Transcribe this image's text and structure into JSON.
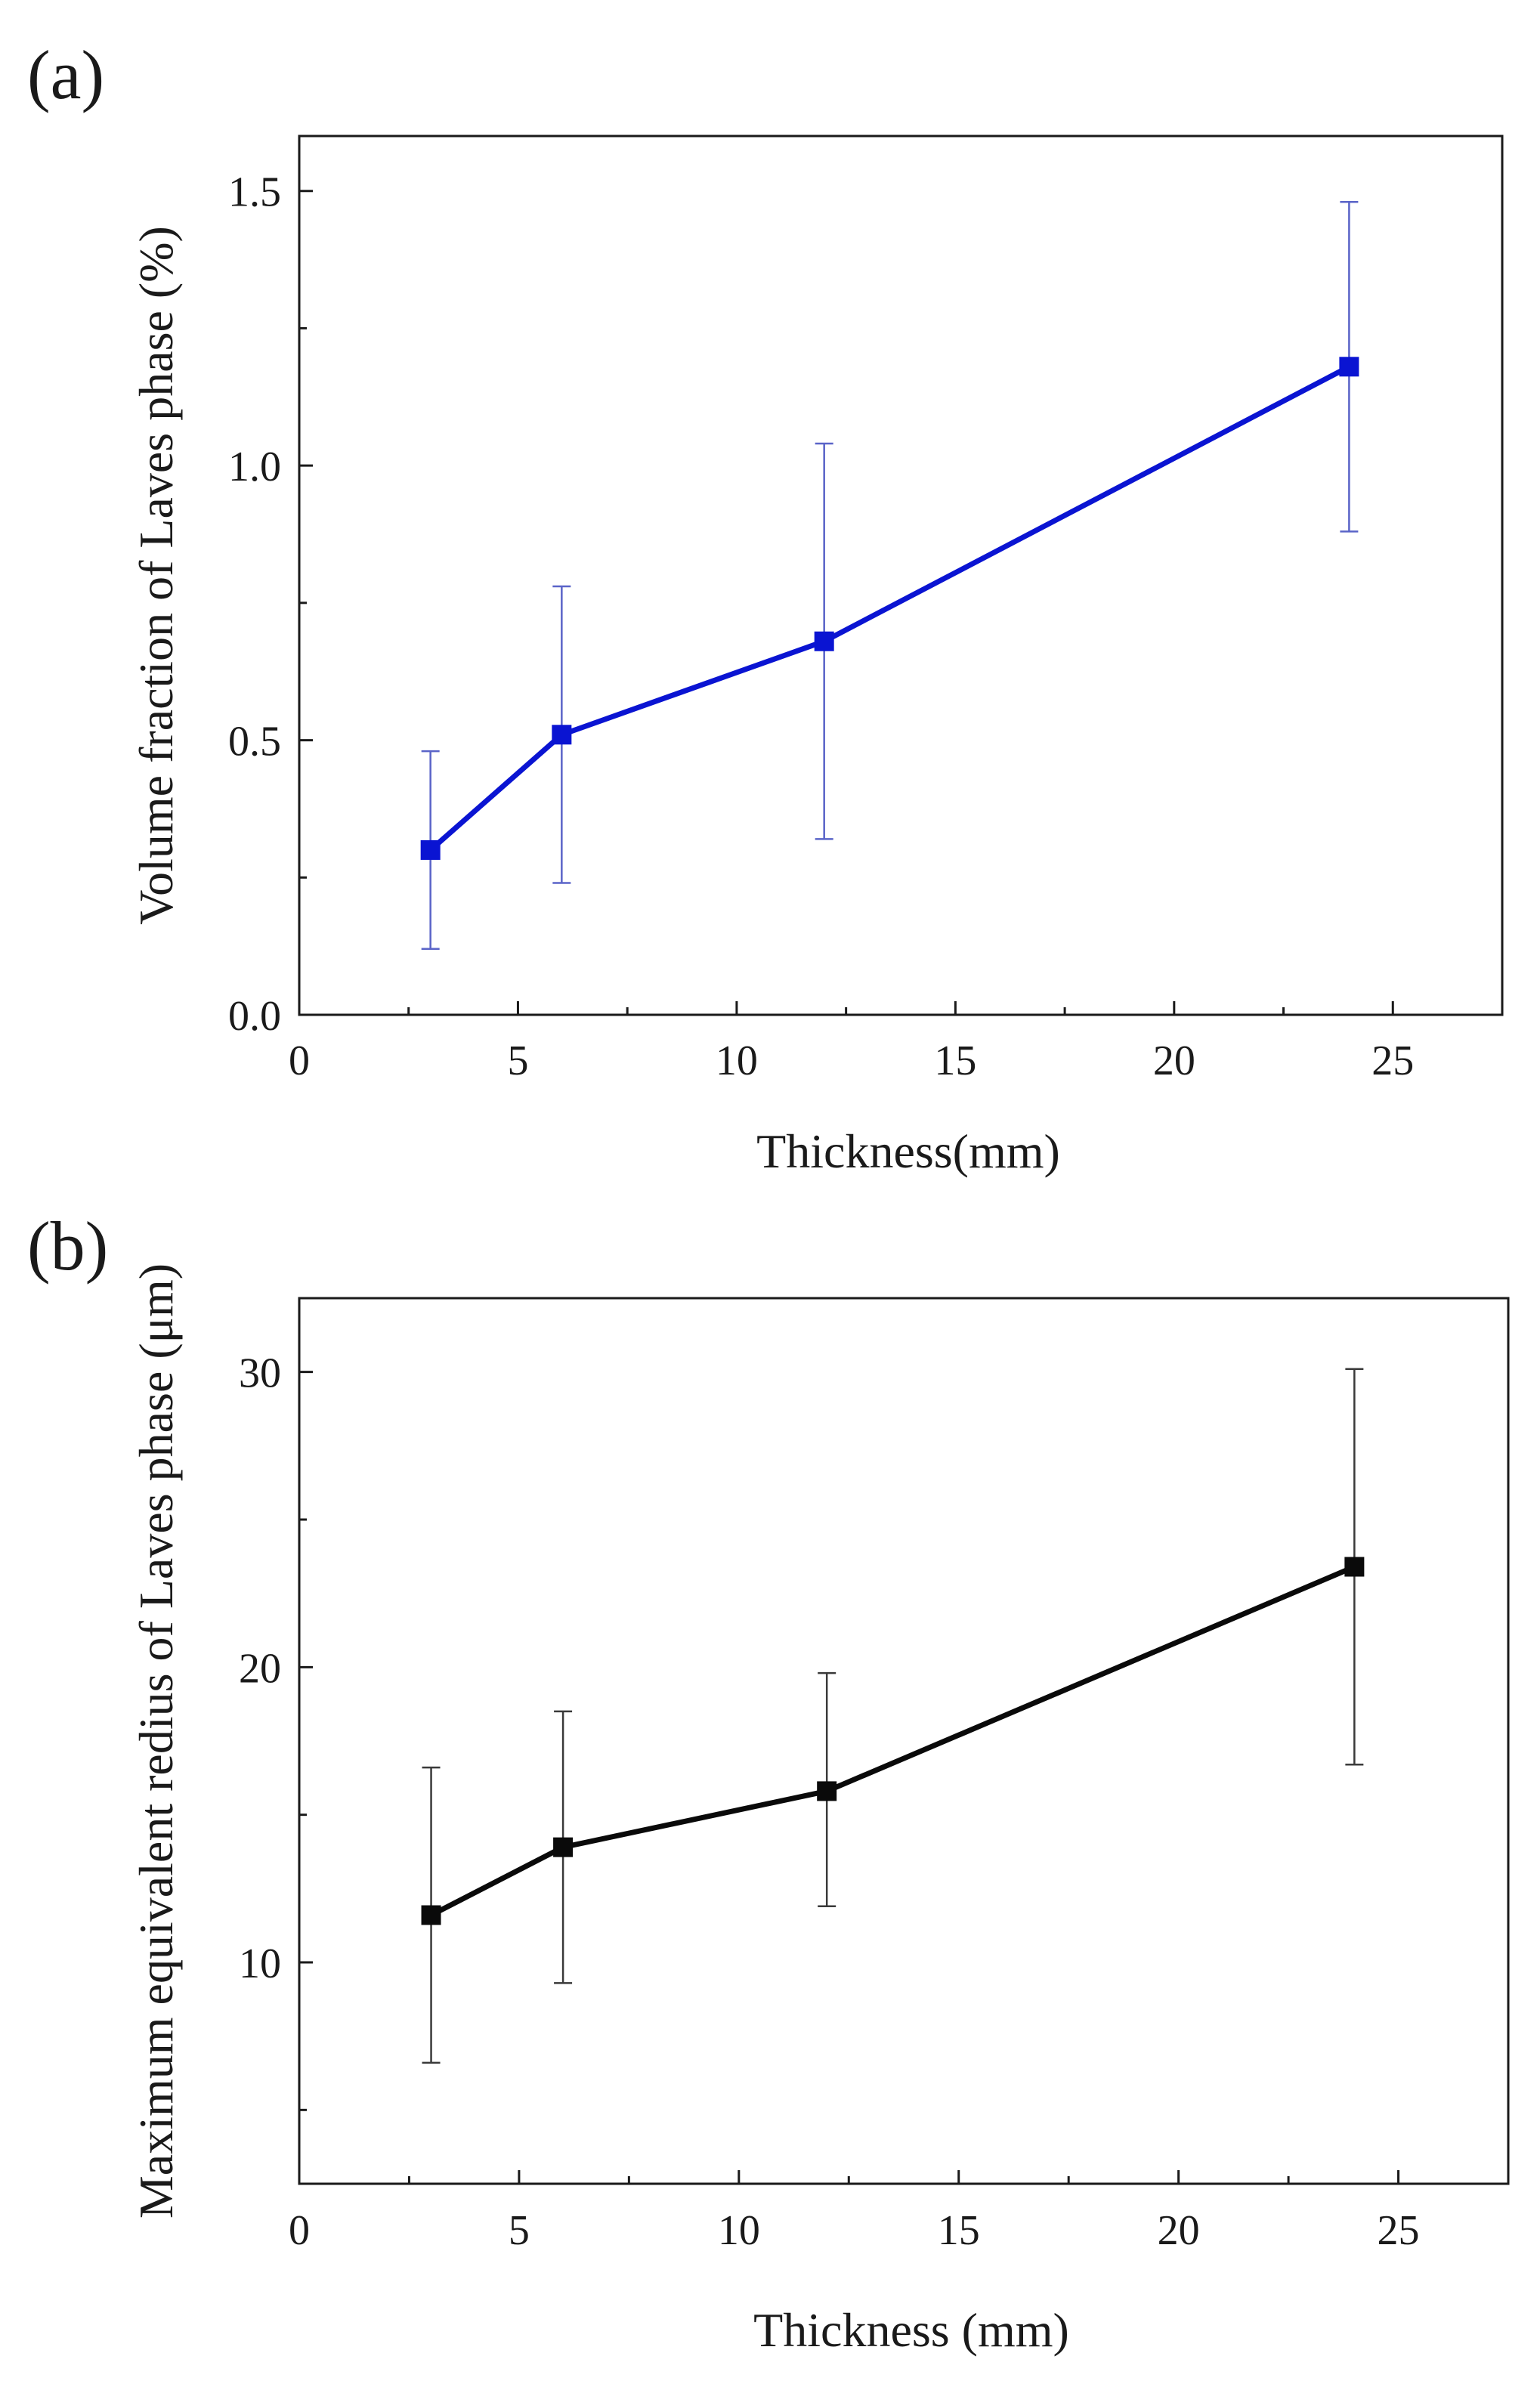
{
  "figure": {
    "panels": [
      {
        "label": "(a)",
        "color": "#0a14d2",
        "errorbar_color": "#5a64c8"
      },
      {
        "label": "(b)",
        "color": "#0a0a0a",
        "errorbar_color": "#3a3a3a"
      }
    ]
  },
  "chart_data": [
    {
      "type": "line",
      "title": "",
      "xlabel": "Thickness(mm)",
      "ylabel": "Volume fraction of Laves phase (%)",
      "xlim": [
        0,
        27.5
      ],
      "ylim": [
        0,
        1.6
      ],
      "xticks": [
        0,
        5,
        10,
        15,
        20,
        25
      ],
      "xtick_labels": [
        "0",
        "5",
        "10",
        "15",
        "20",
        "25"
      ],
      "yticks": [
        0.0,
        0.5,
        1.0,
        1.5
      ],
      "ytick_labels": [
        "0.0",
        "0.5",
        "1.0",
        "1.5"
      ],
      "grid": false,
      "series": [
        {
          "name": "Volume fraction",
          "x": [
            3,
            6,
            12,
            24
          ],
          "y": [
            0.3,
            0.51,
            0.68,
            1.18
          ],
          "err_low": [
            0.12,
            0.24,
            0.32,
            0.88
          ],
          "err_high": [
            0.48,
            0.78,
            1.04,
            1.48
          ]
        }
      ]
    },
    {
      "type": "line",
      "title": "",
      "xlabel": "Thickness (mm)",
      "ylabel": "Maximum equivalent redius of Laves phase (μm)",
      "xlim": [
        0,
        27.5
      ],
      "ylim": [
        2.5,
        32.5
      ],
      "xticks": [
        0,
        5,
        10,
        15,
        20,
        25
      ],
      "xtick_labels": [
        "0",
        "5",
        "10",
        "15",
        "20",
        "25"
      ],
      "yticks": [
        10,
        20,
        30
      ],
      "ytick_labels": [
        "10",
        "20",
        "30"
      ],
      "grid": false,
      "series": [
        {
          "name": "Maximum equivalent radius",
          "x": [
            3,
            6,
            12,
            24
          ],
          "y": [
            11.6,
            13.9,
            15.8,
            23.4
          ],
          "err_low": [
            6.6,
            9.3,
            11.9,
            16.7
          ],
          "err_high": [
            16.6,
            18.5,
            19.8,
            30.1
          ]
        }
      ]
    }
  ]
}
